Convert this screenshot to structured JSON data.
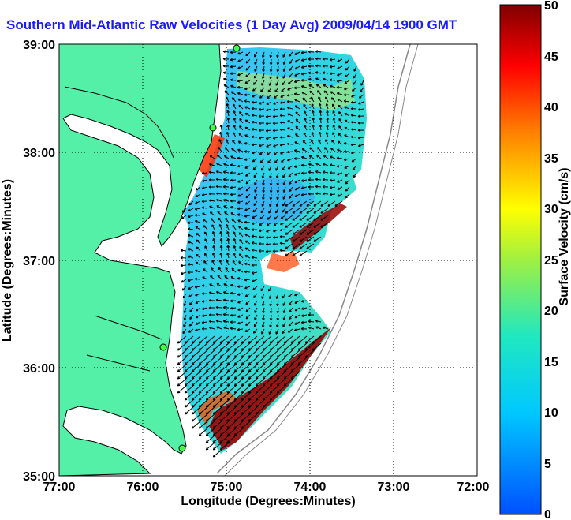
{
  "title": "Southern Mid-Atlantic Raw Velocities (1 Day Avg) 2009/04/14 1900 GMT",
  "xlabel": "Longitude (Degrees:Minutes)",
  "ylabel": "Latitude (Degrees:Minutes)",
  "colorbar_label": "Surface Velocity (cm/s)",
  "x_ticks": [
    "77:00",
    "76:00",
    "75:00",
    "74:00",
    "73:00",
    "72:00"
  ],
  "y_ticks": [
    "39:00",
    "38:00",
    "37:00",
    "36:00",
    "35:00"
  ],
  "colorbar_ticks": [
    "50",
    "45",
    "40",
    "35",
    "30",
    "25",
    "20",
    "15",
    "10",
    "5",
    "0"
  ],
  "colors": {
    "land": "#55f0a8",
    "title": "#1a1aff"
  }
}
